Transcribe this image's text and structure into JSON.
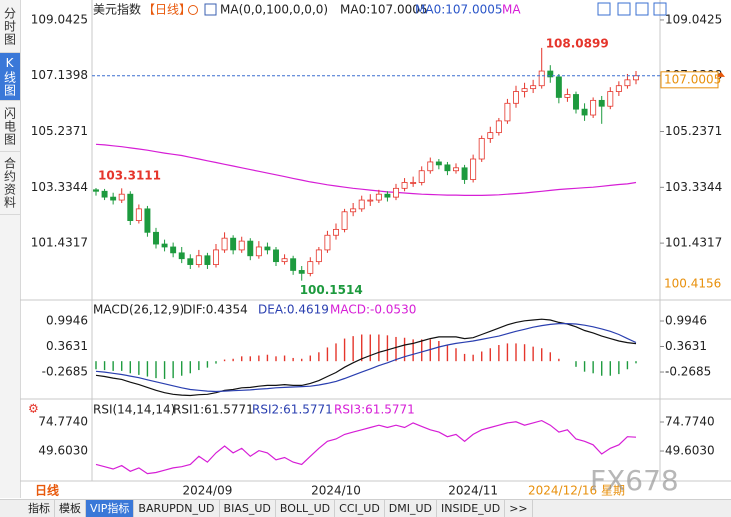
{
  "sidebar": [
    "分时图",
    "K线图",
    "闪电图",
    "合约资料"
  ],
  "bottom_tabs": [
    "指标",
    "模板",
    "VIP指标",
    "BARUPDN_UD",
    "BIAS_UD",
    "BOLL_UD",
    "CCI_UD",
    "DMI_UD",
    "INSIDE_UD",
    ">>"
  ],
  "watermark": "FX678",
  "chart_data": {
    "type": "candlestick",
    "title": "美元指数",
    "period": "【日线】",
    "ma_params": "MA(0,0,100,0,0,0)",
    "ma_text1": "MA0:107.0005",
    "ma_text2": "MA0:107.0005",
    "ma_text3": "MA",
    "period_label": "日线",
    "cursor_date": "2024/12/16 星期",
    "categories": [
      null,
      null,
      null,
      null,
      null,
      null,
      null,
      null,
      null,
      null,
      null,
      null,
      null,
      "2024/09",
      null,
      null,
      null,
      null,
      null,
      null,
      null,
      null,
      null,
      null,
      null,
      null,
      null,
      null,
      "2024/10",
      null,
      null,
      null,
      null,
      null,
      null,
      null,
      null,
      null,
      null,
      null,
      null,
      null,
      null,
      null,
      "2024/11",
      null,
      null,
      null,
      null,
      null,
      null,
      null,
      null,
      null,
      null,
      null,
      null,
      null,
      null,
      null,
      null,
      null,
      null,
      null
    ],
    "up_color": "#e5352b",
    "down_color": "#1d9a3e",
    "candles": {
      "open": [
        103.25,
        103.2,
        103.0,
        102.9,
        103.1,
        102.2,
        102.6,
        101.8,
        101.4,
        101.3,
        101.1,
        100.9,
        100.7,
        101.0,
        100.7,
        101.2,
        101.6,
        101.2,
        101.5,
        101.0,
        101.3,
        101.2,
        100.8,
        100.9,
        100.5,
        100.4,
        100.8,
        101.2,
        101.7,
        101.9,
        102.5,
        102.6,
        102.9,
        102.9,
        103.1,
        103.0,
        103.3,
        103.5,
        103.5,
        103.9,
        104.2,
        104.1,
        103.9,
        104.0,
        103.6,
        104.3,
        105.0,
        105.2,
        105.6,
        106.2,
        106.6,
        106.7,
        106.8,
        107.3,
        107.1,
        106.4,
        106.5,
        106.0,
        105.8,
        106.3,
        106.1,
        106.6,
        106.8,
        107.0
      ],
      "high": [
        103.3111,
        103.28,
        103.15,
        103.3,
        103.2,
        102.75,
        102.7,
        101.95,
        101.55,
        101.45,
        101.3,
        101.05,
        101.2,
        101.1,
        101.4,
        101.8,
        101.7,
        101.65,
        101.6,
        101.5,
        101.45,
        101.3,
        101.05,
        101.0,
        100.65,
        100.95,
        101.3,
        101.85,
        102.1,
        102.6,
        102.8,
        103.05,
        103.1,
        103.25,
        103.2,
        103.45,
        103.65,
        103.7,
        104.05,
        104.35,
        104.3,
        104.2,
        104.15,
        104.1,
        104.45,
        105.1,
        105.4,
        105.7,
        106.35,
        106.8,
        106.9,
        107.0,
        108.0899,
        107.5,
        107.2,
        106.7,
        106.6,
        106.2,
        106.4,
        106.45,
        106.75,
        106.95,
        107.2,
        107.3
      ],
      "low": [
        103.05,
        102.9,
        102.75,
        102.8,
        102.05,
        102.1,
        101.65,
        101.25,
        101.15,
        100.95,
        100.75,
        100.55,
        100.6,
        100.55,
        100.6,
        101.1,
        101.05,
        101.1,
        100.85,
        100.9,
        101.05,
        100.65,
        100.7,
        100.35,
        100.1514,
        100.3,
        100.7,
        101.1,
        101.55,
        101.8,
        102.35,
        102.5,
        102.7,
        102.8,
        102.85,
        102.9,
        103.2,
        103.35,
        103.4,
        103.8,
        103.95,
        103.75,
        103.8,
        103.45,
        103.5,
        104.2,
        104.85,
        105.1,
        105.5,
        106.05,
        106.4,
        106.55,
        106.7,
        106.9,
        106.2,
        106.25,
        105.85,
        105.6,
        105.7,
        105.5,
        106.0,
        106.45,
        106.7,
        106.85
      ],
      "close": [
        103.2,
        103.0,
        102.9,
        103.1,
        102.2,
        102.6,
        101.8,
        101.4,
        101.3,
        101.1,
        100.9,
        100.7,
        101.0,
        100.7,
        101.2,
        101.6,
        101.2,
        101.5,
        101.0,
        101.3,
        101.2,
        100.8,
        100.9,
        100.5,
        100.4,
        100.8,
        101.2,
        101.7,
        101.9,
        102.5,
        102.6,
        102.9,
        102.9,
        103.1,
        103.0,
        103.3,
        103.5,
        103.5,
        103.9,
        104.2,
        104.1,
        103.9,
        104.0,
        103.6,
        104.3,
        105.0,
        105.2,
        105.6,
        106.2,
        106.6,
        106.7,
        106.8,
        107.3,
        107.1,
        106.4,
        106.5,
        106.0,
        105.8,
        106.3,
        106.1,
        106.6,
        106.8,
        107.0,
        107.1398
      ]
    },
    "ma": {
      "color": "#d61ed6",
      "values": [
        104.8,
        104.78,
        104.75,
        104.72,
        104.68,
        104.64,
        104.6,
        104.55,
        104.5,
        104.46,
        104.42,
        104.36,
        104.3,
        104.24,
        104.18,
        104.12,
        104.06,
        104.0,
        103.94,
        103.88,
        103.82,
        103.76,
        103.7,
        103.64,
        103.58,
        103.52,
        103.47,
        103.42,
        103.38,
        103.34,
        103.3,
        103.27,
        103.24,
        103.21,
        103.18,
        103.16,
        103.14,
        103.12,
        103.1,
        103.09,
        103.08,
        103.07,
        103.07,
        103.06,
        103.06,
        103.06,
        103.07,
        103.08,
        103.1,
        103.12,
        103.14,
        103.17,
        103.2,
        103.23,
        103.26,
        103.28,
        103.3,
        103.32,
        103.34,
        103.37,
        103.4,
        103.43,
        103.45,
        103.5
      ]
    },
    "ylim": [
      99.56,
      109.45
    ],
    "yticks": [
      109.0425,
      107.1398,
      105.2371,
      103.3344,
      101.4317
    ],
    "current_value": 107.0005,
    "lower_value_label": "100.4156",
    "macd": {
      "title": "MACD(26,12,9)",
      "dif_label": "DIF:0.4354",
      "dea_label": "DEA:0.4619",
      "macd_label": "MACD:-0.0530",
      "ylim": [
        -0.862,
        1.465
      ],
      "yticks": [
        0.9946,
        0.3631,
        -0.2685
      ],
      "dif_color": "#111111",
      "dea_color": "#2a3fb0",
      "dif": [
        -0.35,
        -0.38,
        -0.42,
        -0.45,
        -0.52,
        -0.58,
        -0.65,
        -0.72,
        -0.78,
        -0.82,
        -0.84,
        -0.85,
        -0.83,
        -0.82,
        -0.78,
        -0.72,
        -0.7,
        -0.66,
        -0.65,
        -0.62,
        -0.6,
        -0.6,
        -0.58,
        -0.6,
        -0.6,
        -0.55,
        -0.48,
        -0.38,
        -0.28,
        -0.15,
        -0.04,
        0.06,
        0.14,
        0.22,
        0.28,
        0.34,
        0.4,
        0.44,
        0.5,
        0.56,
        0.6,
        0.6,
        0.6,
        0.56,
        0.58,
        0.66,
        0.74,
        0.82,
        0.9,
        0.96,
        1.0,
        1.02,
        1.04,
        1.02,
        0.96,
        0.92,
        0.85,
        0.76,
        0.7,
        0.62,
        0.56,
        0.5,
        0.46,
        0.4354
      ],
      "dea": [
        -0.25,
        -0.27,
        -0.3,
        -0.33,
        -0.37,
        -0.41,
        -0.46,
        -0.51,
        -0.56,
        -0.61,
        -0.66,
        -0.7,
        -0.72,
        -0.74,
        -0.75,
        -0.74,
        -0.73,
        -0.72,
        -0.71,
        -0.69,
        -0.68,
        -0.66,
        -0.65,
        -0.64,
        -0.63,
        -0.62,
        -0.59,
        -0.55,
        -0.5,
        -0.43,
        -0.35,
        -0.27,
        -0.19,
        -0.11,
        -0.04,
        0.04,
        0.11,
        0.17,
        0.23,
        0.29,
        0.35,
        0.4,
        0.44,
        0.47,
        0.5,
        0.54,
        0.58,
        0.62,
        0.68,
        0.74,
        0.79,
        0.84,
        0.88,
        0.91,
        0.93,
        0.93,
        0.92,
        0.89,
        0.85,
        0.8,
        0.74,
        0.66,
        0.56,
        0.4619
      ],
      "hist": [
        -0.2,
        -0.22,
        -0.24,
        -0.24,
        -0.3,
        -0.34,
        -0.38,
        -0.42,
        -0.44,
        -0.42,
        -0.36,
        -0.3,
        -0.22,
        -0.16,
        -0.06,
        0.04,
        0.06,
        0.12,
        0.12,
        0.14,
        0.16,
        0.12,
        0.14,
        0.08,
        0.06,
        0.14,
        0.22,
        0.34,
        0.44,
        0.56,
        0.62,
        0.66,
        0.66,
        0.66,
        0.64,
        0.6,
        0.58,
        0.54,
        0.54,
        0.54,
        0.5,
        0.4,
        0.32,
        0.18,
        0.16,
        0.24,
        0.32,
        0.4,
        0.44,
        0.44,
        0.42,
        0.36,
        0.32,
        0.22,
        0.06,
        0.0,
        -0.14,
        -0.26,
        -0.3,
        -0.36,
        -0.36,
        -0.32,
        -0.2,
        -0.053
      ]
    },
    "rsi": {
      "title": "RSI(14,14,14)",
      "rsi1_label": "RSI1:61.5771",
      "rsi2_label": "RSI2:61.5771",
      "rsi3_label": "RSI3:61.5771",
      "ylim": [
        26.2,
        90.4
      ],
      "yticks": [
        {
          "value": 74.774,
          "label": "74.7740"
        },
        {
          "value": 49.603,
          "label": "49.6030"
        }
      ],
      "color": "#d61ed6",
      "values": [
        38,
        36,
        34,
        37,
        32,
        35,
        30,
        31,
        33,
        35,
        36,
        38,
        45,
        40,
        48,
        54,
        48,
        52,
        45,
        50,
        48,
        42,
        44,
        40,
        38,
        45,
        52,
        58,
        60,
        64,
        66,
        68,
        70,
        72,
        70,
        72,
        70,
        74,
        71,
        68,
        66,
        62,
        64,
        58,
        64,
        68,
        70,
        72,
        74,
        75,
        72,
        74,
        76,
        72,
        66,
        68,
        60,
        58,
        55,
        47,
        52,
        55,
        62,
        61.5771
      ]
    }
  }
}
